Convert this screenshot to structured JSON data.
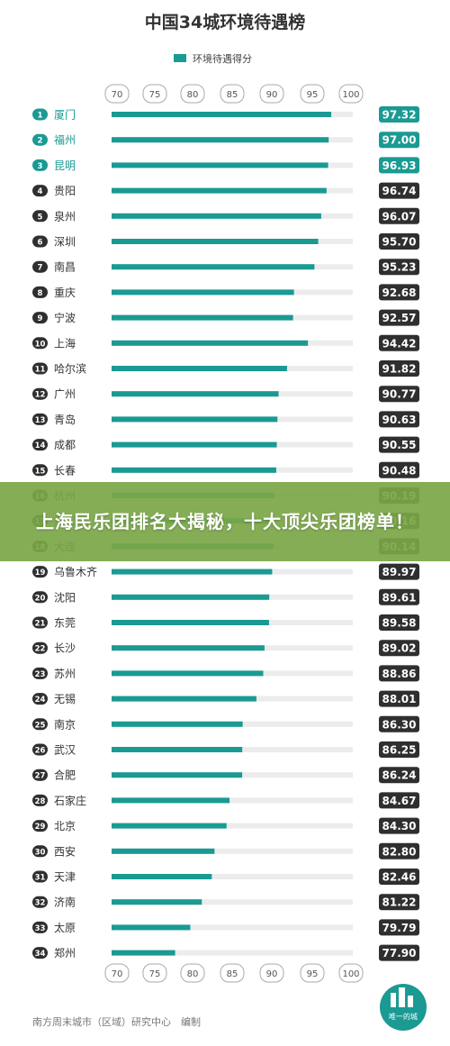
{
  "chart_data": {
    "type": "bar",
    "title": "中国34城环境待遇榜",
    "legend": "环境待遇得分",
    "x_ticks": [
      70,
      75,
      80,
      85,
      90,
      95,
      100
    ],
    "xlim": [
      70,
      100
    ],
    "categories": [
      "厦门",
      "福州",
      "昆明",
      "贵阳",
      "泉州",
      "深圳",
      "南昌",
      "重庆",
      "宁波",
      "上海",
      "哈尔滨",
      "广州",
      "青岛",
      "成都",
      "长春",
      "杭州",
      "武汉",
      "大连",
      "乌鲁木齐",
      "沈阳",
      "东莞",
      "长沙",
      "苏州",
      "无锡",
      "南京",
      "武汉",
      "合肥",
      "石家庄",
      "北京",
      "西安",
      "天津",
      "济南",
      "太原",
      "郑州"
    ],
    "rank_labels": [
      "1",
      "2",
      "3",
      "4",
      "5",
      "6",
      "7",
      "8",
      "9",
      "10",
      "11",
      "12",
      "13",
      "14",
      "15",
      "16",
      "17",
      "18",
      "19",
      "20",
      "21",
      "22",
      "23",
      "24",
      "25",
      "26",
      "27",
      "28",
      "29",
      "30",
      "31",
      "32",
      "33",
      "34"
    ],
    "values": [
      97.32,
      97.0,
      96.93,
      96.74,
      96.07,
      95.7,
      95.23,
      92.68,
      92.57,
      94.42,
      91.82,
      90.77,
      90.63,
      90.55,
      90.48,
      90.19,
      90.16,
      90.14,
      89.97,
      89.61,
      89.58,
      89.02,
      88.86,
      88.01,
      86.3,
      86.25,
      86.24,
      84.67,
      84.3,
      82.8,
      82.46,
      81.22,
      79.79,
      77.9
    ],
    "value_labels": [
      "97.32",
      "97.00",
      "96.93",
      "96.74",
      "96.07",
      "95.70",
      "95.23",
      "92.68",
      "92.57",
      "94.42",
      "91.82",
      "90.77",
      "90.63",
      "90.55",
      "90.48",
      "90.19",
      "90.16",
      "90.14",
      "89.97",
      "89.61",
      "89.58",
      "89.02",
      "88.86",
      "88.01",
      "86.30",
      "86.25",
      "86.24",
      "84.67",
      "84.30",
      "82.80",
      "82.46",
      "81.22",
      "79.79",
      "77.90"
    ],
    "colors": {
      "bar": "#1a9a93",
      "track": "#ececec",
      "top_badge": "#1a9a93",
      "badge": "#2f2f2f",
      "text": "#333333",
      "tick_border": "#aaaaaa"
    }
  },
  "banner": {
    "text": "上海民乐团排名大揭秘，十大顶尖乐团榜单！",
    "color": "#7aa646"
  },
  "footer": {
    "source": "南方周末城市（区域）研究中心　编制",
    "logo_text": "唯一的城"
  }
}
